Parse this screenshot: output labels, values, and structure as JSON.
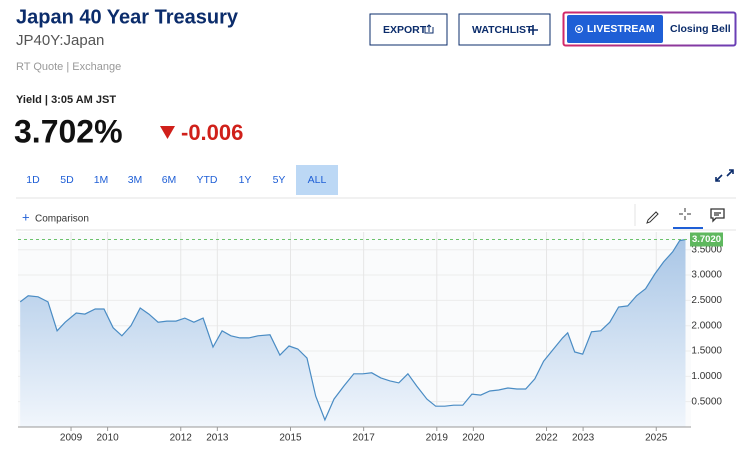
{
  "header": {
    "title": "Japan 40 Year Treasury",
    "symbol": "JP40Y:Japan",
    "quote_source": "RT Quote | Exchange"
  },
  "buttons": {
    "export": "EXPORT",
    "watchlist": "WATCHLIST",
    "livestream": "LIVESTREAM",
    "show": "Closing Bell"
  },
  "quote": {
    "label": "Yield | 3:05 AM JST",
    "price": "3.702%",
    "change": "-0.006"
  },
  "ranges": [
    "1D",
    "5D",
    "1M",
    "3M",
    "6M",
    "YTD",
    "1Y",
    "5Y",
    "ALL"
  ],
  "active_range": "ALL",
  "comparison": "Comparison",
  "chart_data": {
    "type": "area",
    "color": "#4a8cc4",
    "x": [
      2007.61,
      2007.83,
      2008.1,
      2008.37,
      2008.62,
      2008.84,
      2009.14,
      2009.38,
      2009.66,
      2009.9,
      2010.15,
      2010.39,
      2010.64,
      2010.89,
      2011.13,
      2011.38,
      2011.62,
      2011.87,
      2012.11,
      2012.36,
      2012.61,
      2012.88,
      2013.13,
      2013.37,
      2013.62,
      2013.86,
      2014.11,
      2014.44,
      2014.71,
      2014.96,
      2015.2,
      2015.45,
      2015.69,
      2015.94,
      2016.19,
      2016.46,
      2016.73,
      2016.98,
      2017.22,
      2017.47,
      2017.72,
      2017.96,
      2018.21,
      2018.45,
      2018.73,
      2018.97,
      2019.22,
      2019.46,
      2019.71,
      2019.96,
      2020.2,
      2020.45,
      2020.69,
      2020.94,
      2021.19,
      2021.43,
      2021.68,
      2021.92,
      2022.17,
      2022.44,
      2022.58,
      2022.77,
      2022.99,
      2023.23,
      2023.48,
      2023.73,
      2023.97,
      2024.22,
      2024.46,
      2024.71,
      2024.96,
      2025.2,
      2025.45,
      2025.64,
      2025.8
    ],
    "values": [
      2.47,
      2.59,
      2.57,
      2.47,
      1.9,
      2.07,
      2.25,
      2.23,
      2.33,
      2.33,
      1.96,
      1.8,
      2.0,
      2.35,
      2.23,
      2.07,
      2.09,
      2.09,
      2.15,
      2.07,
      2.15,
      1.58,
      1.9,
      1.8,
      1.76,
      1.76,
      1.8,
      1.82,
      1.42,
      1.6,
      1.54,
      1.36,
      0.61,
      0.14,
      0.55,
      0.81,
      1.05,
      1.05,
      1.07,
      0.97,
      0.91,
      0.87,
      1.05,
      0.81,
      0.55,
      0.41,
      0.41,
      0.43,
      0.43,
      0.65,
      0.63,
      0.71,
      0.73,
      0.77,
      0.75,
      0.75,
      0.95,
      1.3,
      1.52,
      1.76,
      1.86,
      1.48,
      1.44,
      1.88,
      1.9,
      2.07,
      2.37,
      2.39,
      2.59,
      2.73,
      3.02,
      3.26,
      3.46,
      3.68,
      3.702
    ],
    "last_label": "3.7020",
    "xlim": [
      2007.55,
      2025.95
    ],
    "ylim": [
      0,
      3.85
    ],
    "xticks": [
      2009,
      2010,
      2012,
      2013,
      2015,
      2017,
      2019,
      2020,
      2022,
      2023,
      2025
    ],
    "yticks": [
      {
        "value": 0.5,
        "label": "0.5000"
      },
      {
        "value": 1,
        "label": "1.0000"
      },
      {
        "value": 1.5,
        "label": "1.5000"
      },
      {
        "value": 2,
        "label": "2.0000"
      },
      {
        "value": 2.5,
        "label": "2.5000"
      },
      {
        "value": 3,
        "label": "3.0000"
      },
      {
        "value": 3.5,
        "label": "3.5000"
      }
    ],
    "grid": true
  }
}
